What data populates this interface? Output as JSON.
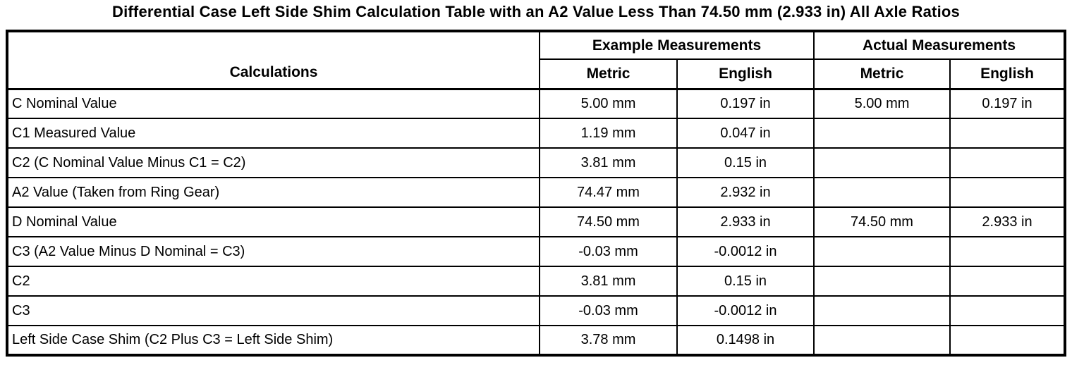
{
  "title": "Differential Case Left Side Shim Calculation Table with an A2 Value Less Than 74.50 mm (2.933 in) All Axle Ratios",
  "colors": {
    "border": "#000000",
    "background": "#ffffff",
    "text": "#000000"
  },
  "table": {
    "headers": {
      "calculations": "Calculations",
      "example_group": "Example Measurements",
      "actual_group": "Actual Measurements",
      "example_metric": "Metric",
      "example_english": "English",
      "actual_metric": "Metric",
      "actual_english": "English"
    },
    "rows": [
      {
        "calculation": "C Nominal Value",
        "example_metric": "5.00 mm",
        "example_english": "0.197 in",
        "actual_metric": "5.00 mm",
        "actual_english": "0.197 in"
      },
      {
        "calculation": "C1 Measured Value",
        "example_metric": "1.19 mm",
        "example_english": "0.047 in",
        "actual_metric": "",
        "actual_english": ""
      },
      {
        "calculation": "C2 (C Nominal Value Minus C1 = C2)",
        "example_metric": "3.81 mm",
        "example_english": "0.15 in",
        "actual_metric": "",
        "actual_english": ""
      },
      {
        "calculation": "A2 Value (Taken from Ring Gear)",
        "example_metric": "74.47 mm",
        "example_english": "2.932 in",
        "actual_metric": "",
        "actual_english": ""
      },
      {
        "calculation": "D Nominal Value",
        "example_metric": "74.50 mm",
        "example_english": "2.933 in",
        "actual_metric": "74.50 mm",
        "actual_english": "2.933 in"
      },
      {
        "calculation": "C3 (A2 Value Minus D Nominal = C3)",
        "example_metric": "-0.03 mm",
        "example_english": "-0.0012 in",
        "actual_metric": "",
        "actual_english": ""
      },
      {
        "calculation": "C2",
        "example_metric": "3.81 mm",
        "example_english": "0.15 in",
        "actual_metric": "",
        "actual_english": ""
      },
      {
        "calculation": "C3",
        "example_metric": "-0.03 mm",
        "example_english": "-0.0012 in",
        "actual_metric": "",
        "actual_english": ""
      },
      {
        "calculation": "Left Side Case Shim (C2 Plus C3 = Left Side Shim)",
        "example_metric": "3.78 mm",
        "example_english": "0.1498 in",
        "actual_metric": "",
        "actual_english": ""
      }
    ]
  }
}
